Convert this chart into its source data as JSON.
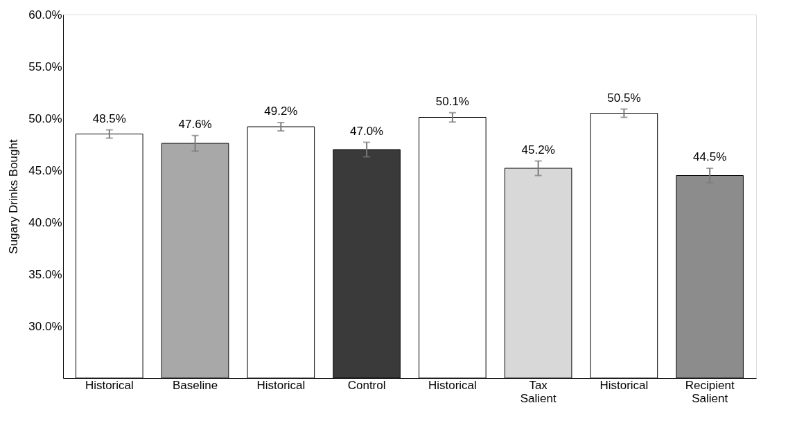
{
  "chart_data": {
    "type": "bar",
    "ylabel": "Sugary Drinks Bought",
    "categories": [
      "Historical",
      "Baseline",
      "Historical",
      "Control",
      "Historical",
      "Tax Salient",
      "Historical",
      "Recipient Salient"
    ],
    "values": [
      48.5,
      47.6,
      49.2,
      47.0,
      50.1,
      45.2,
      50.5,
      44.5
    ],
    "colors": [
      "#ffffff",
      "#a8a8a8",
      "#ffffff",
      "#3a3a3a",
      "#ffffff",
      "#d8d8d8",
      "#ffffff",
      "#8c8c8c"
    ],
    "errors": [
      0.4,
      0.75,
      0.4,
      0.7,
      0.45,
      0.7,
      0.4,
      0.7
    ],
    "value_labels": [
      "48.5%",
      "47.6%",
      "49.2%",
      "47.0%",
      "50.1%",
      "45.2%",
      "50.5%",
      "44.5%"
    ],
    "ylim": [
      25,
      60
    ],
    "yticks": [
      {
        "value": 30,
        "label": "30.0%"
      },
      {
        "value": 35,
        "label": "35.0%"
      },
      {
        "value": 40,
        "label": "40.0%"
      },
      {
        "value": 45,
        "label": "45.0%"
      },
      {
        "value": 50,
        "label": "50.0%"
      },
      {
        "value": 55,
        "label": "55.0%"
      },
      {
        "value": 60,
        "label": "60.0%"
      }
    ],
    "grid": false
  }
}
